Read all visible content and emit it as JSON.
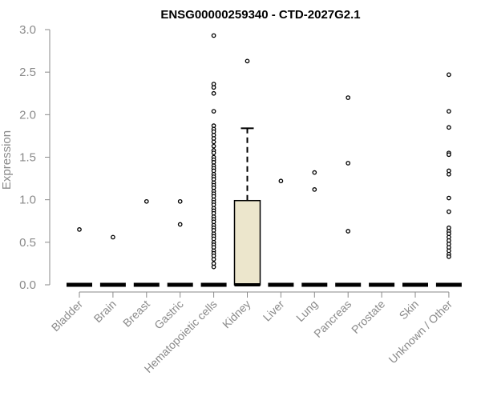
{
  "chart_data": {
    "type": "box",
    "title": "ENSG00000259340 - CTD-2027G2.1",
    "xlabel": "",
    "ylabel": "Expression",
    "ylim": [
      0,
      3.0
    ],
    "yticks": [
      "0.0",
      "0.5",
      "1.0",
      "1.5",
      "2.0",
      "2.5",
      "3.0"
    ],
    "box_fill": "#ece6cc",
    "categories": [
      "Bladder",
      "Brain",
      "Breast",
      "Gastric",
      "Hematopoietic cells",
      "Kidney",
      "Liver",
      "Lung",
      "Pancreas",
      "Prostate",
      "Skin",
      "Unknown / Other"
    ],
    "boxes": [
      {
        "category": "Bladder",
        "q1": 0,
        "median": 0,
        "q3": 0,
        "whisker_low": 0,
        "whisker_high": 0,
        "outliers": [
          0.65
        ]
      },
      {
        "category": "Brain",
        "q1": 0,
        "median": 0,
        "q3": 0,
        "whisker_low": 0,
        "whisker_high": 0,
        "outliers": [
          0.56
        ]
      },
      {
        "category": "Breast",
        "q1": 0,
        "median": 0,
        "q3": 0,
        "whisker_low": 0,
        "whisker_high": 0,
        "outliers": [
          0.98
        ]
      },
      {
        "category": "Gastric",
        "q1": 0,
        "median": 0,
        "q3": 0,
        "whisker_low": 0,
        "whisker_high": 0,
        "outliers": [
          0.98,
          0.71
        ]
      },
      {
        "category": "Hematopoietic cells",
        "q1": 0,
        "median": 0,
        "q3": 0,
        "whisker_low": 0,
        "whisker_high": 0,
        "outliers": [
          2.93,
          2.36,
          2.32,
          2.25,
          2.04,
          1.87,
          1.83,
          1.8,
          1.76,
          1.72,
          1.68,
          1.63,
          1.58,
          1.55,
          1.5,
          1.47,
          1.44,
          1.4,
          1.37,
          1.34,
          1.3,
          1.27,
          1.24,
          1.2,
          1.17,
          1.14,
          1.1,
          1.07,
          1.04,
          1.0,
          0.97,
          0.94,
          0.9,
          0.87,
          0.84,
          0.8,
          0.77,
          0.74,
          0.7,
          0.67,
          0.64,
          0.6,
          0.57,
          0.54,
          0.5,
          0.47,
          0.44,
          0.4,
          0.37,
          0.34,
          0.3,
          0.25,
          0.21
        ]
      },
      {
        "category": "Kidney",
        "q1": 0,
        "median": 0,
        "q3": 0.99,
        "whisker_low": 0,
        "whisker_high": 1.84,
        "outliers": [
          2.63
        ]
      },
      {
        "category": "Liver",
        "q1": 0,
        "median": 0,
        "q3": 0,
        "whisker_low": 0,
        "whisker_high": 0,
        "outliers": [
          1.22
        ]
      },
      {
        "category": "Lung",
        "q1": 0,
        "median": 0,
        "q3": 0,
        "whisker_low": 0,
        "whisker_high": 0,
        "outliers": [
          1.32,
          1.12
        ]
      },
      {
        "category": "Pancreas",
        "q1": 0,
        "median": 0,
        "q3": 0,
        "whisker_low": 0,
        "whisker_high": 0,
        "outliers": [
          2.2,
          1.43,
          0.63
        ]
      },
      {
        "category": "Prostate",
        "q1": 0,
        "median": 0,
        "q3": 0,
        "whisker_low": 0,
        "whisker_high": 0,
        "outliers": []
      },
      {
        "category": "Skin",
        "q1": 0,
        "median": 0,
        "q3": 0,
        "whisker_low": 0,
        "whisker_high": 0,
        "outliers": []
      },
      {
        "category": "Unknown / Other",
        "q1": 0,
        "median": 0,
        "q3": 0,
        "whisker_low": 0,
        "whisker_high": 0,
        "outliers": [
          2.47,
          2.04,
          1.85,
          1.55,
          1.53,
          1.34,
          1.3,
          1.02,
          0.86,
          0.67,
          0.63,
          0.6,
          0.56,
          0.52,
          0.48,
          0.44,
          0.4,
          0.36,
          0.33
        ]
      }
    ]
  }
}
